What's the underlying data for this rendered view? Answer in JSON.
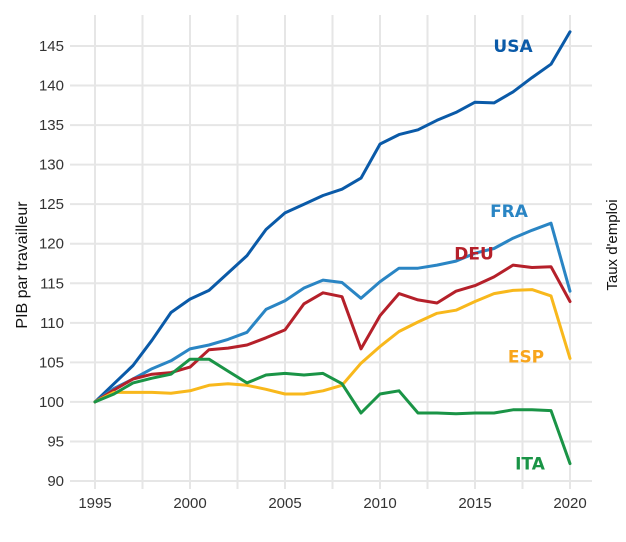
{
  "chart_data": {
    "type": "line",
    "title": "",
    "xlabel": "",
    "ylabel": "PIB par travailleur",
    "side_label": "Taux d'emploi",
    "xlim": [
      1995,
      2020
    ],
    "ylim": [
      90,
      145
    ],
    "grid": true,
    "x_ticks": [
      1995,
      2000,
      2005,
      2010,
      2015,
      2020
    ],
    "y_ticks": [
      90,
      95,
      100,
      105,
      110,
      115,
      120,
      125,
      130,
      135,
      140,
      145
    ],
    "x": [
      1995,
      1996,
      1997,
      1998,
      1999,
      2000,
      2001,
      2002,
      2003,
      2004,
      2005,
      2006,
      2007,
      2008,
      2009,
      2010,
      2011,
      2012,
      2013,
      2014,
      2015,
      2016,
      2017,
      2018,
      2019,
      2020
    ],
    "series": [
      {
        "name": "USA",
        "color": "#0a5aa8",
        "values": [
          100,
          102.3,
          104.6,
          107.8,
          111.3,
          113.0,
          114.1,
          116.3,
          118.5,
          121.8,
          123.9,
          125.0,
          126.1,
          126.9,
          128.3,
          132.6,
          133.8,
          134.4,
          135.6,
          136.6,
          137.9,
          137.8,
          139.2,
          141.0,
          142.7,
          146.8
        ]
      },
      {
        "name": "FRA",
        "color": "#2a85c4",
        "values": [
          100,
          101.7,
          102.9,
          104.2,
          105.2,
          106.7,
          107.2,
          107.9,
          108.8,
          111.7,
          112.8,
          114.4,
          115.4,
          115.1,
          113.1,
          115.2,
          116.9,
          116.9,
          117.3,
          117.8,
          118.8,
          119.4,
          120.7,
          121.7,
          122.6,
          114.0
        ]
      },
      {
        "name": "DEU",
        "color": "#b5202a",
        "values": [
          100,
          101.5,
          102.9,
          103.5,
          103.7,
          104.4,
          106.6,
          106.8,
          107.2,
          108.1,
          109.1,
          112.4,
          113.8,
          113.3,
          106.7,
          110.9,
          113.7,
          112.9,
          112.5,
          114.0,
          114.7,
          115.8,
          117.3,
          117.0,
          117.1,
          112.7
        ]
      },
      {
        "name": "ESP",
        "color": "#f8b81c",
        "values": [
          100,
          101.2,
          101.2,
          101.2,
          101.1,
          101.4,
          102.1,
          102.3,
          102.1,
          101.6,
          101.0,
          101.0,
          101.4,
          102.1,
          104.9,
          107.0,
          108.9,
          110.1,
          111.2,
          111.6,
          112.7,
          113.7,
          114.1,
          114.2,
          113.4,
          105.5
        ]
      },
      {
        "name": "ITA",
        "color": "#1a9446",
        "values": [
          100,
          101.0,
          102.4,
          103.0,
          103.5,
          105.4,
          105.4,
          103.9,
          102.4,
          103.4,
          103.6,
          103.4,
          103.6,
          102.3,
          98.6,
          101.0,
          101.4,
          98.6,
          98.6,
          98.5,
          98.6,
          98.6,
          99.0,
          99.0,
          98.9,
          92.2
        ]
      }
    ],
    "annotations": [
      {
        "text": "USA",
        "series": "USA",
        "color": "#0a5aa8"
      },
      {
        "text": "FRA",
        "series": "FRA",
        "color": "#2a85c4"
      },
      {
        "text": "DEU",
        "series": "DEU",
        "color": "#b5202a"
      },
      {
        "text": "ESP",
        "series": "ESP",
        "color": "#f8a51c"
      },
      {
        "text": "ITA",
        "series": "ITA",
        "color": "#1a9446"
      }
    ]
  }
}
